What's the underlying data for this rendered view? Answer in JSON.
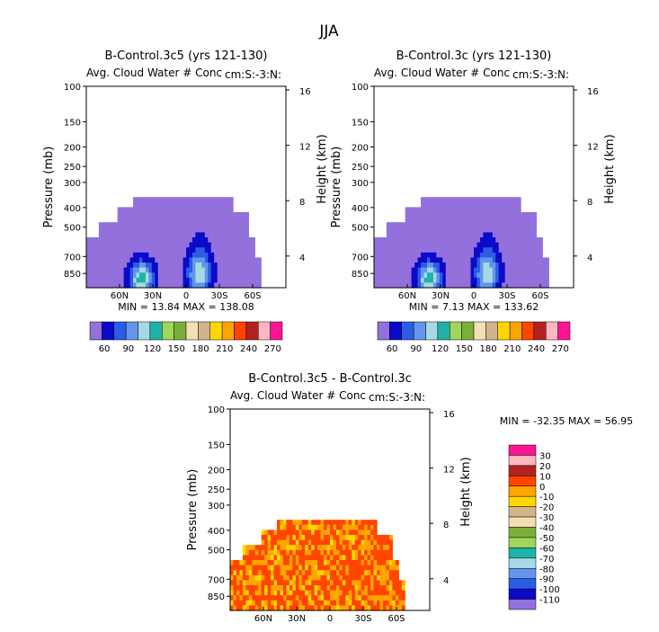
{
  "page_title": "JJA",
  "chart_data": [
    {
      "type": "contour",
      "title": "B-Control.3c5 (yrs 121-130)",
      "subtitle": "Avg. Cloud Water # Conc",
      "subtitle_right": "cm:S:-3:N:",
      "ylabel_left": "Pressure (mb)",
      "ylabel_right": "Height (km)",
      "x_ticks": [
        "60N",
        "30N",
        "0",
        "30S",
        "60S"
      ],
      "x_tick_values": [
        60,
        30,
        0,
        -30,
        -60
      ],
      "xlim": [
        90,
        -90
      ],
      "y_ticks_left": [
        "100",
        "150",
        "200",
        "250",
        "300",
        "400",
        "500",
        "700",
        "850"
      ],
      "y_tick_values": [
        100,
        150,
        200,
        250,
        300,
        400,
        500,
        700,
        850
      ],
      "ylim": [
        1000,
        100
      ],
      "y_ticks_right": [
        "16",
        "12",
        "8",
        "4"
      ],
      "stats": "MIN =   13.84   MAX =  138.08",
      "colorbar_labels": [
        "60",
        "90",
        "120",
        "150",
        "180",
        "210",
        "240",
        "270"
      ],
      "colorbar_colors": [
        "#9370db",
        "#0a0ac8",
        "#2b5ce6",
        "#6495ed",
        "#a6d9e3",
        "#20b2aa",
        "#a0d65a",
        "#7ab03a",
        "#f5deb3",
        "#d2b48c",
        "#ffd700",
        "#ffa500",
        "#ff4500",
        "#b22222",
        "#ffb6c1",
        "#ff1493"
      ]
    },
    {
      "type": "contour",
      "title": "B-Control.3c (yrs 121-130)",
      "subtitle": "Avg. Cloud Water # Conc",
      "subtitle_right": "cm:S:-3:N:",
      "ylabel_left": "Pressure (mb)",
      "ylabel_right": "Height (km)",
      "x_ticks": [
        "60N",
        "30N",
        "0",
        "30S",
        "60S"
      ],
      "x_tick_values": [
        60,
        30,
        0,
        -30,
        -60
      ],
      "xlim": [
        90,
        -90
      ],
      "y_ticks_left": [
        "100",
        "150",
        "200",
        "250",
        "300",
        "400",
        "500",
        "700",
        "850"
      ],
      "y_tick_values": [
        100,
        150,
        200,
        250,
        300,
        400,
        500,
        700,
        850
      ],
      "ylim": [
        1000,
        100
      ],
      "y_ticks_right": [
        "16",
        "12",
        "8",
        "4"
      ],
      "stats": "MIN =    7.13   MAX =  133.62",
      "colorbar_labels": [
        "60",
        "90",
        "120",
        "150",
        "180",
        "210",
        "240",
        "270"
      ],
      "colorbar_colors": [
        "#9370db",
        "#0a0ac8",
        "#2b5ce6",
        "#6495ed",
        "#a6d9e3",
        "#20b2aa",
        "#a0d65a",
        "#7ab03a",
        "#f5deb3",
        "#d2b48c",
        "#ffd700",
        "#ffa500",
        "#ff4500",
        "#b22222",
        "#ffb6c1",
        "#ff1493"
      ]
    },
    {
      "type": "contour",
      "title": "B-Control.3c5 - B-Control.3c",
      "subtitle": "Avg. Cloud Water # Conc",
      "subtitle_right": "cm:S:-3:N:",
      "ylabel_left": "Pressure (mb)",
      "ylabel_right": "Height (km)",
      "x_ticks": [
        "60N",
        "30N",
        "0",
        "30S",
        "60S"
      ],
      "x_tick_values": [
        60,
        30,
        0,
        -30,
        -60
      ],
      "xlim": [
        90,
        -90
      ],
      "y_ticks_left": [
        "100",
        "150",
        "200",
        "250",
        "300",
        "400",
        "500",
        "700",
        "850"
      ],
      "y_tick_values": [
        100,
        150,
        200,
        250,
        300,
        400,
        500,
        700,
        850
      ],
      "ylim": [
        1000,
        100
      ],
      "y_ticks_right": [
        "16",
        "12",
        "8",
        "4"
      ],
      "stats": "MIN =  -32.35   MAX =   56.95",
      "colorbar_labels": [
        "30",
        "20",
        "10",
        "0",
        "-10",
        "-20",
        "-30",
        "-40",
        "-50",
        "-60",
        "-70",
        "-80",
        "-90",
        "-100",
        "-110"
      ],
      "colorbar_colors": [
        "#ff1493",
        "#ffb6c1",
        "#b22222",
        "#ff4500",
        "#ffa500",
        "#ffd700",
        "#d2b48c",
        "#f5deb3",
        "#7ab03a",
        "#a0d65a",
        "#20b2aa",
        "#a6d9e3",
        "#6495ed",
        "#2b5ce6",
        "#0a0ac8",
        "#9370db"
      ]
    }
  ]
}
